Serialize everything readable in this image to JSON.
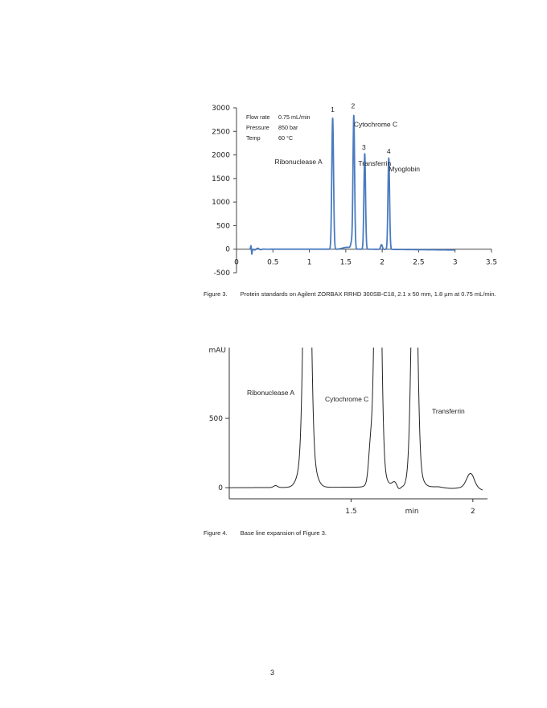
{
  "figure3": {
    "caption_label": "Figure 3.",
    "caption_text": "Protein standards on Agilent ZORBAX RRHD 300SB-C18, 2.1 x 50 mm, 1.8 µm at 0.75 mL/min.",
    "conditions": [
      {
        "label": "Flow rate",
        "value": "0.75 mL/min"
      },
      {
        "label": "Pressure",
        "value": "850 bar"
      },
      {
        "label": "Temp",
        "value": "60 °C"
      }
    ]
  },
  "figure4": {
    "caption_label": "Figure 4.",
    "caption_text": "Base line expansion of Figure 3."
  },
  "page_number": "3",
  "chart_data": [
    {
      "type": "line",
      "title": "",
      "xlabel": "",
      "ylabel": "",
      "xlim": [
        0,
        3.5
      ],
      "ylim": [
        -500,
        3000
      ],
      "x_ticks": [
        "0",
        "0.5",
        "1",
        "1.5",
        "2",
        "2.5",
        "3",
        "3.5"
      ],
      "y_ticks": [
        "3000",
        "2500",
        "2000",
        "1500",
        "1000",
        "500",
        "0",
        "-500"
      ],
      "line_color": "#4a7bc0",
      "peaks": [
        {
          "number": "1",
          "name": "Ribonuclease A",
          "rt": 1.32,
          "height": 2780,
          "width": 0.012
        },
        {
          "number": "2",
          "name": "Cytochrome C",
          "rt": 1.61,
          "height": 2820,
          "width": 0.011
        },
        {
          "number": "3",
          "name": "Transferrin",
          "rt": 1.76,
          "height": 2030,
          "width": 0.011
        },
        {
          "number": "4",
          "name": "Myoglobin",
          "rt": 2.09,
          "height": 1940,
          "width": 0.011
        }
      ],
      "minor_peaks": [
        {
          "rt": 1.58,
          "height": 130,
          "width": 0.012
        },
        {
          "rt": 1.99,
          "height": 100,
          "width": 0.012
        }
      ]
    },
    {
      "type": "line",
      "title": "",
      "xlabel": "min",
      "ylabel": "mAU",
      "xlim": [
        1.0,
        2.06
      ],
      "ylim": [
        -80,
        1010
      ],
      "x_ticks": [
        {
          "value": 1.5,
          "label": "1.5"
        },
        {
          "value": 2,
          "label": "2"
        }
      ],
      "y_ticks": [
        {
          "value": 500,
          "label": "500"
        },
        {
          "value": 0,
          "label": "0"
        }
      ],
      "line_color": "#222222",
      "peaks": [
        {
          "name": "Ribonuclease A",
          "rt": 1.32,
          "height": 2780,
          "width": 0.012
        },
        {
          "name": "Cytochrome C",
          "rt": 1.61,
          "height": 2820,
          "width": 0.011
        },
        {
          "name": "Transferrin",
          "rt": 1.76,
          "height": 2030,
          "width": 0.011
        }
      ]
    }
  ]
}
